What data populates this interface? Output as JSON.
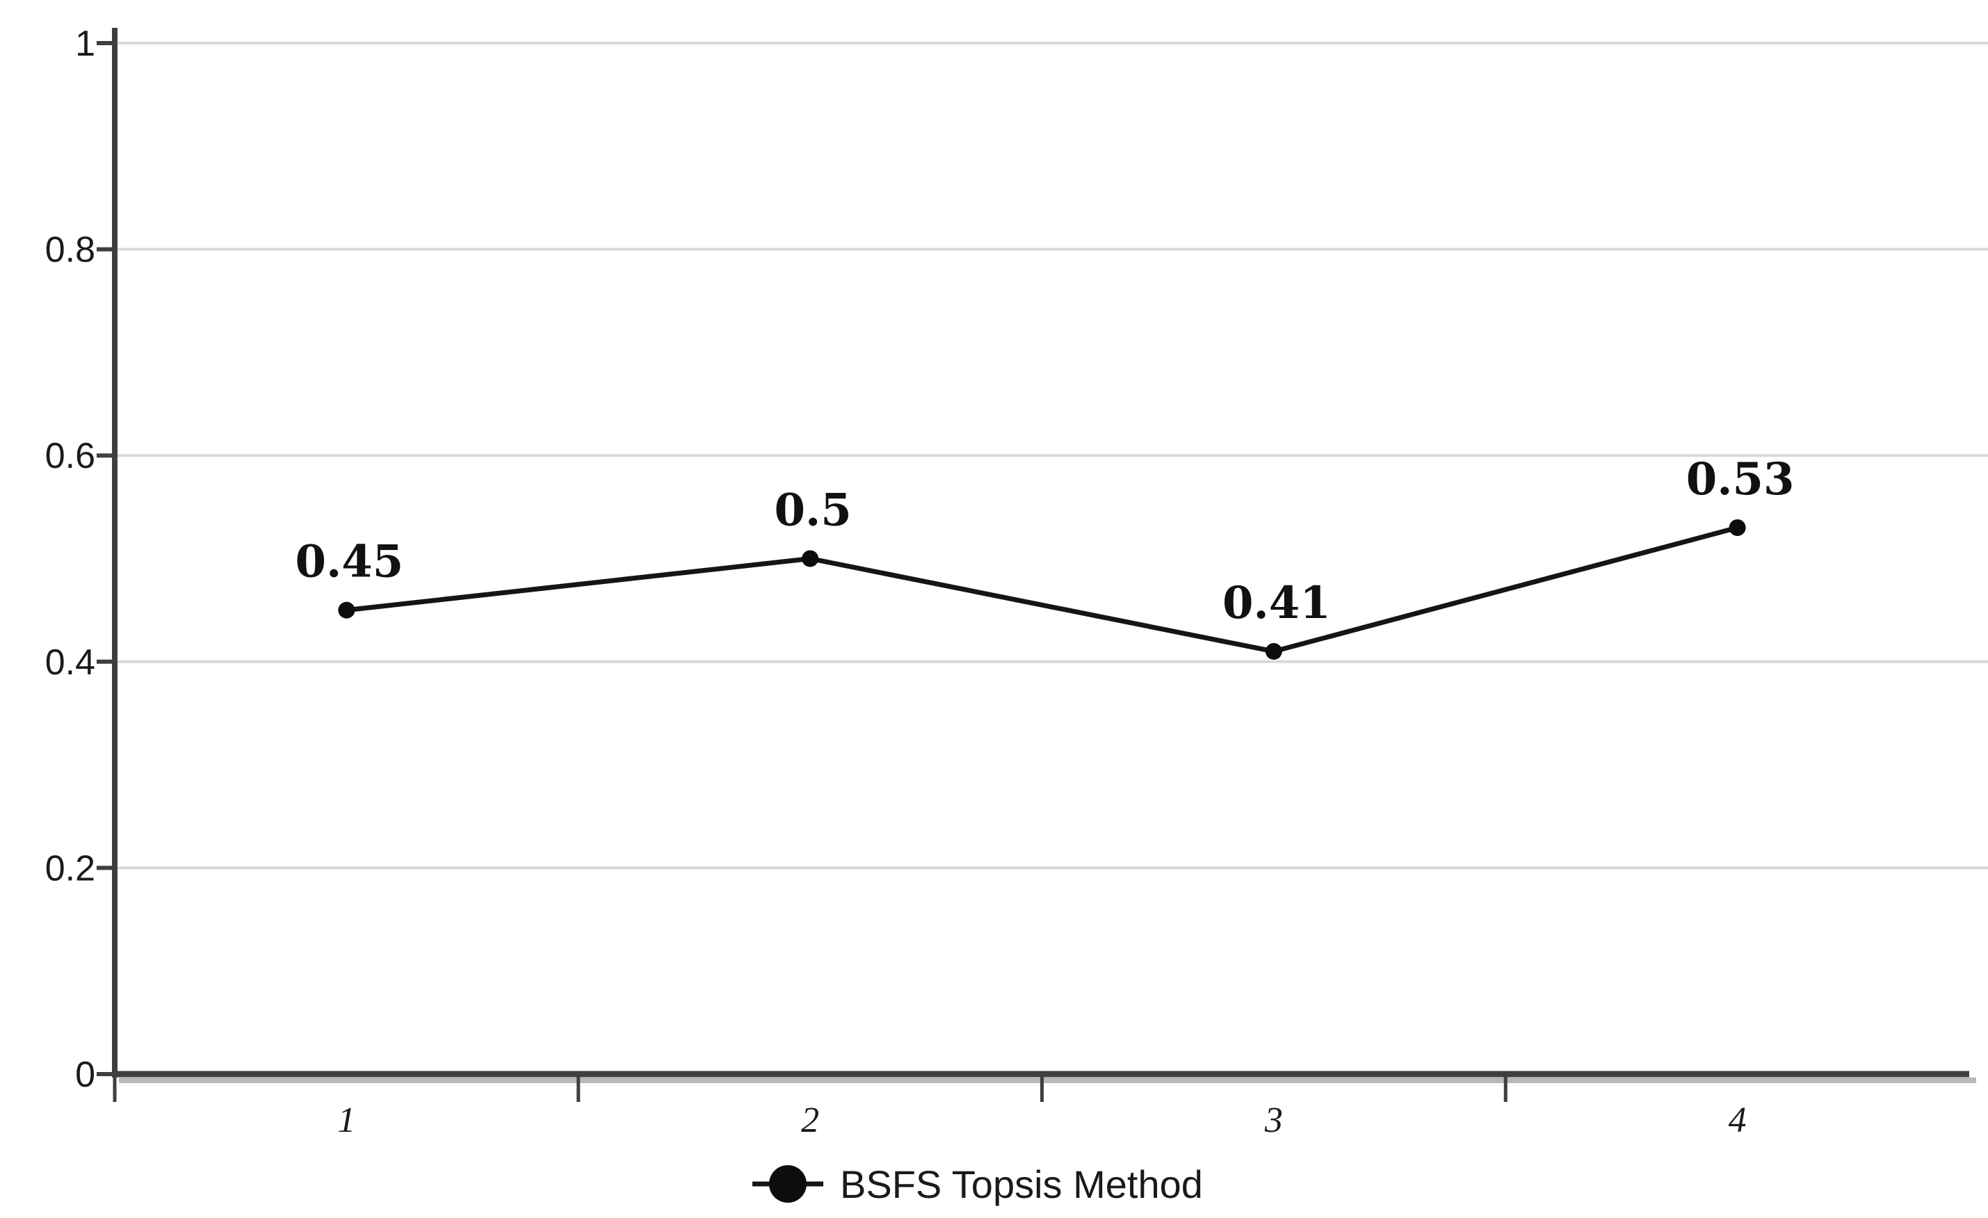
{
  "chart_data": {
    "type": "line",
    "categories": [
      "1",
      "2",
      "3",
      "4"
    ],
    "series": [
      {
        "name": "BSFS Topsis Method",
        "values": [
          0.45,
          0.5,
          0.41,
          0.53
        ],
        "data_labels": [
          "0.45",
          "0.5",
          "0.41",
          "0.53"
        ]
      }
    ],
    "title": "",
    "xlabel": "",
    "ylabel": "",
    "ylim": [
      0,
      1
    ],
    "yticks": [
      0,
      0.2,
      0.4,
      0.6,
      0.8,
      1
    ],
    "ytick_labels": [
      "0",
      "0.2",
      "0.4",
      "0.6",
      "0.8",
      "1"
    ],
    "grid": "horizontal",
    "legend_position": "bottom-center",
    "marker": "filled-circle",
    "colors": {
      "series_line": "#151515",
      "marker_fill": "#0d0d0d",
      "gridline": "#d9d9d9",
      "axis": "#3f3f3f",
      "axis_shadow": "#b8b8b8",
      "text": "#1a1a1a",
      "background": "#ffffff"
    }
  },
  "legend": {
    "marker_icon": "circle-on-line-icon",
    "label": "BSFS Topsis Method"
  }
}
